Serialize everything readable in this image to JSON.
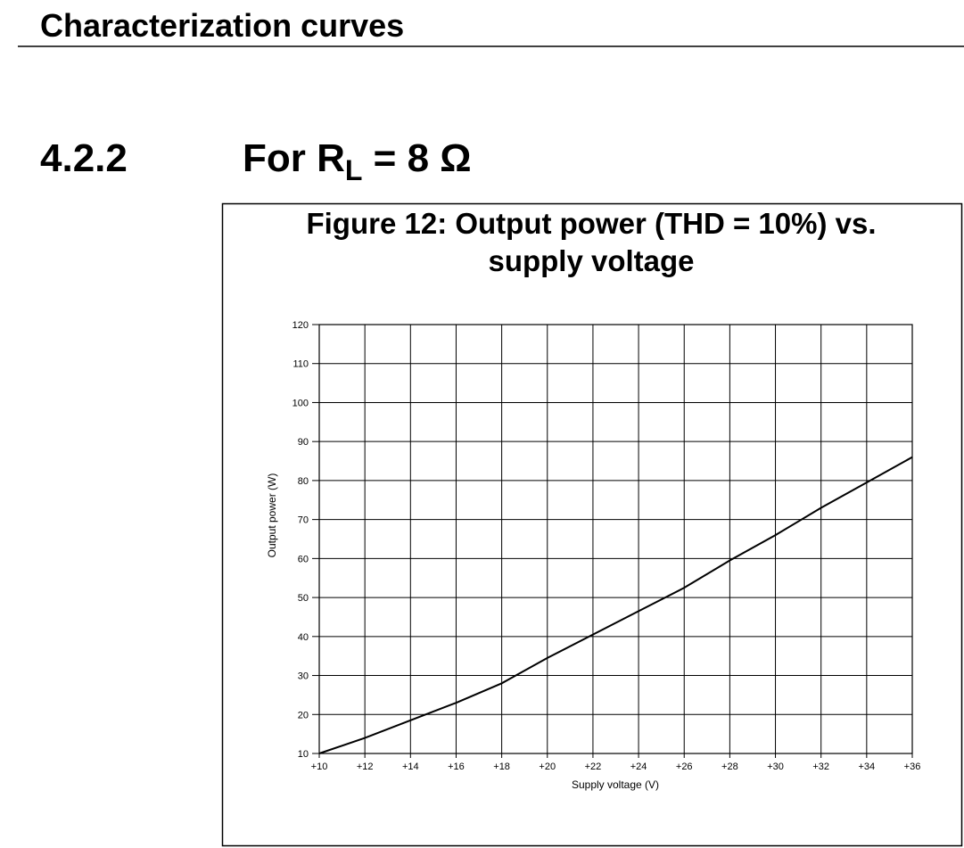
{
  "header": {
    "title": "Characterization curves"
  },
  "section": {
    "number": "4.2.2",
    "text_before": "For R",
    "subscript": "L",
    "text_after": " = 8 Ω"
  },
  "chart_data": {
    "type": "line",
    "title": [
      "Figure 12: Output power (THD = 10%) vs.",
      "supply voltage"
    ],
    "x_label": "Supply voltage (V)",
    "y_label": "Output power (W)",
    "x": [
      10,
      12,
      14,
      16,
      18,
      20,
      22,
      24,
      26,
      28,
      30,
      32,
      34,
      36
    ],
    "values": [
      10,
      14,
      18.5,
      23,
      28,
      34.5,
      40.5,
      46.5,
      52.5,
      59.5,
      66,
      73,
      79.5,
      86
    ],
    "color": "#000000",
    "xlim": [
      10,
      36
    ],
    "ylim": [
      10,
      120
    ],
    "xticks": [
      {
        "value": 10,
        "label": "+10"
      },
      {
        "value": 12,
        "label": "+12"
      },
      {
        "value": 14,
        "label": "+14"
      },
      {
        "value": 16,
        "label": "+16"
      },
      {
        "value": 18,
        "label": "+18"
      },
      {
        "value": 20,
        "label": "+20"
      },
      {
        "value": 22,
        "label": "+22"
      },
      {
        "value": 24,
        "label": "+24"
      },
      {
        "value": 26,
        "label": "+26"
      },
      {
        "value": 28,
        "label": "+28"
      },
      {
        "value": 30,
        "label": "+30"
      },
      {
        "value": 32,
        "label": "+32"
      },
      {
        "value": 34,
        "label": "+34"
      },
      {
        "value": 36,
        "label": "+36"
      }
    ],
    "yticks": [
      10,
      20,
      30,
      40,
      50,
      60,
      70,
      80,
      90,
      100,
      110,
      120
    ],
    "grid": true
  }
}
